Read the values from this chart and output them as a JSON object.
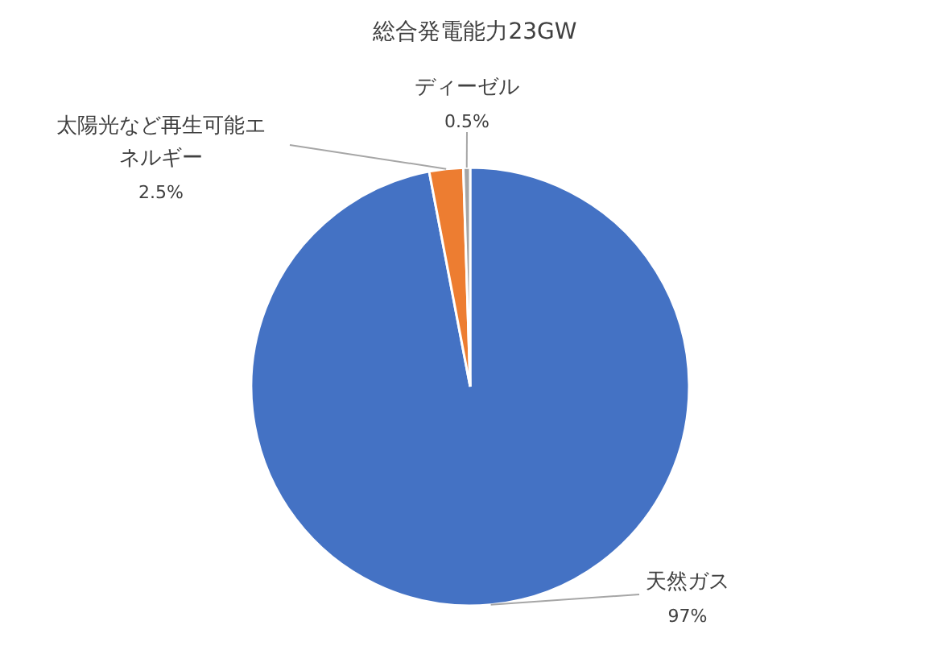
{
  "chart_data": {
    "type": "pie",
    "title": "総合発電能力23GW",
    "categories": [
      "天然ガス",
      "太陽光など再生可能エネルギー",
      "ディーゼル"
    ],
    "values": [
      97,
      2.5,
      0.5
    ],
    "colors": [
      "#4472c4",
      "#ed7d31",
      "#a5a5a5"
    ],
    "value_labels": [
      "97%",
      "2.5%",
      "0.5%"
    ],
    "legend": false
  }
}
